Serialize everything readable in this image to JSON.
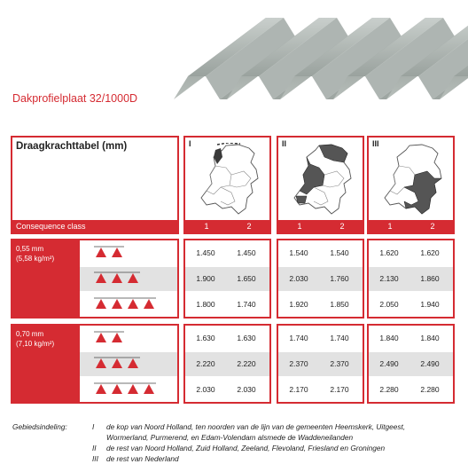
{
  "title": "Dakprofielplaat 32/1000D",
  "table_heading": "Draagkrachttabel (mm)",
  "consequence_label": "Consequence class",
  "zones": [
    {
      "label": "I",
      "cols": [
        "1",
        "2"
      ]
    },
    {
      "label": "II",
      "cols": [
        "1",
        "2"
      ]
    },
    {
      "label": "III",
      "cols": [
        "1",
        "2"
      ]
    }
  ],
  "groups": [
    {
      "thickness": "0,55 mm",
      "weight": "(5,58 kg/m²)",
      "rows": [
        {
          "supports": 2,
          "values": [
            [
              "1.450",
              "1.450"
            ],
            [
              "1.540",
              "1.540"
            ],
            [
              "1.620",
              "1.620"
            ]
          ]
        },
        {
          "supports": 3,
          "values": [
            [
              "1.900",
              "1.650"
            ],
            [
              "2.030",
              "1.760"
            ],
            [
              "2.130",
              "1.860"
            ]
          ]
        },
        {
          "supports": 4,
          "values": [
            [
              "1.800",
              "1.740"
            ],
            [
              "1.920",
              "1.850"
            ],
            [
              "2.050",
              "1.940"
            ]
          ]
        }
      ]
    },
    {
      "thickness": "0,70 mm",
      "weight": "(7,10 kg/m²)",
      "rows": [
        {
          "supports": 2,
          "values": [
            [
              "1.630",
              "1.630"
            ],
            [
              "1.740",
              "1.740"
            ],
            [
              "1.840",
              "1.840"
            ]
          ]
        },
        {
          "supports": 3,
          "values": [
            [
              "2.220",
              "2.220"
            ],
            [
              "2.370",
              "2.370"
            ],
            [
              "2.490",
              "2.490"
            ]
          ]
        },
        {
          "supports": 4,
          "values": [
            [
              "2.030",
              "2.030"
            ],
            [
              "2.170",
              "2.170"
            ],
            [
              "2.280",
              "2.280"
            ]
          ]
        }
      ]
    }
  ],
  "footnote": {
    "label": "Gebiedsindeling:",
    "items": [
      {
        "num": "I",
        "text": "de kop van Noord Holland, ten noorden van de lijn van de gemeenten Heemskerk, Uitgeest,"
      },
      {
        "num": "",
        "text": "Wormerland, Purmerend, en Edam-Volendam alsmede de Waddeneilanden"
      },
      {
        "num": "II",
        "text": "de rest van Noord Holland, Zuid Holland, Zeeland, Flevoland, Friesland en Groningen"
      },
      {
        "num": "III",
        "text": "de rest van Nederland"
      }
    ]
  },
  "colors": {
    "accent": "#d52b32",
    "band": "#e2e2e2",
    "sheet": "#a9b0ad"
  },
  "icons": [
    "corrugated-sheet-image",
    "netherlands-map-icon",
    "red-triangle-support-icon"
  ]
}
